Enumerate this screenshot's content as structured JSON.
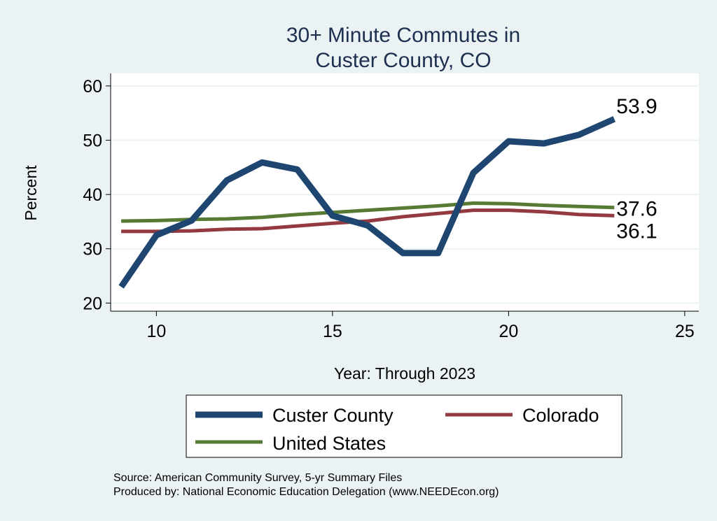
{
  "chart_data": {
    "type": "line",
    "title": [
      "30+ Minute Commutes in",
      "Custer County, CO"
    ],
    "xlabel": "Year: Through 2023",
    "ylabel": "Percent",
    "xlim": [
      8.7,
      25.4
    ],
    "ylim": [
      18.5,
      62.3
    ],
    "xticks": [
      10,
      15,
      20,
      25
    ],
    "yticks": [
      20,
      30,
      40,
      50,
      60
    ],
    "grid": true,
    "x": [
      9,
      10,
      11,
      12,
      13,
      14,
      15,
      16,
      17,
      18,
      19,
      20,
      21,
      22,
      23
    ],
    "series": [
      {
        "name": "Custer County",
        "color": "#1f4670",
        "width": 9,
        "values": [
          23.0,
          32.5,
          35.2,
          42.6,
          45.9,
          44.6,
          36.1,
          34.3,
          29.2,
          29.2,
          44.0,
          49.8,
          49.4,
          51.0,
          53.9
        ],
        "end_label": "53.9"
      },
      {
        "name": "Colorado",
        "color": "#923a40",
        "width": 5,
        "values": [
          33.2,
          33.2,
          33.3,
          33.6,
          33.7,
          34.2,
          34.7,
          35.1,
          35.9,
          36.5,
          37.1,
          37.1,
          36.8,
          36.3,
          36.1
        ],
        "end_label": "36.1"
      },
      {
        "name": "United States",
        "color": "#577a34",
        "width": 5,
        "values": [
          35.1,
          35.2,
          35.4,
          35.5,
          35.8,
          36.3,
          36.7,
          37.1,
          37.5,
          37.9,
          38.4,
          38.3,
          38.0,
          37.8,
          37.6
        ],
        "end_label": "37.6"
      }
    ],
    "legend": {
      "placement": "bottom",
      "entries": [
        "Custer County",
        "Colorado",
        "United States"
      ]
    },
    "notes": [
      "Source: American Community Survey, 5-yr Summary Files",
      "Produced by: National Economic Education Delegation (www.NEEDEcon.org)"
    ]
  }
}
